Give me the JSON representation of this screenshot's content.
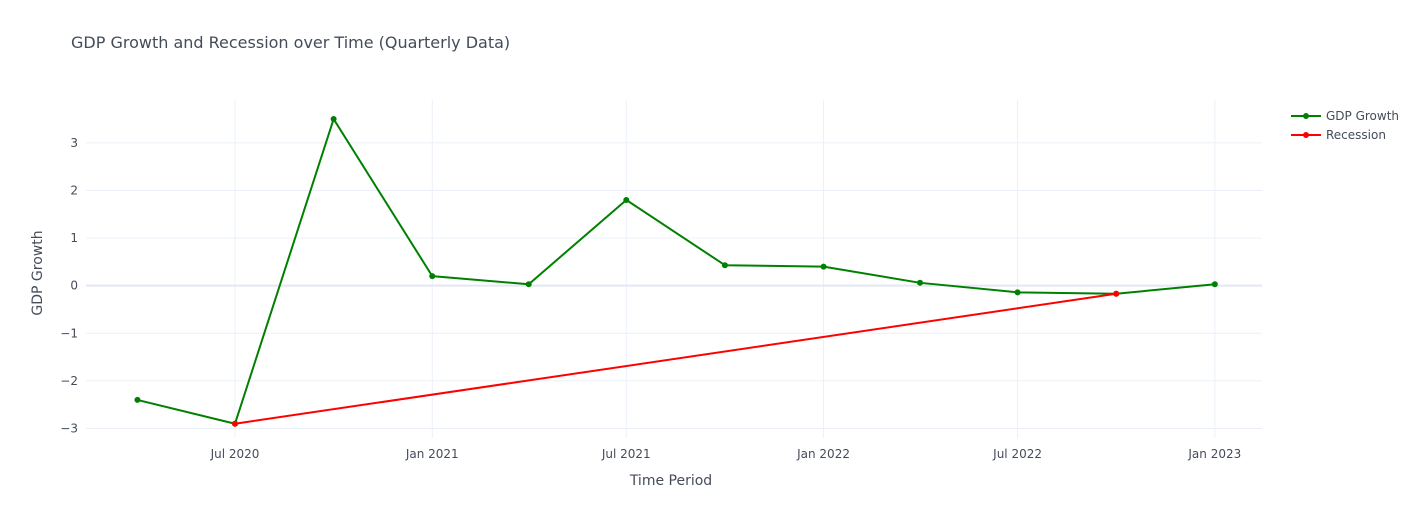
{
  "chart_data": {
    "type": "line",
    "title": "GDP Growth and Recession over Time (Quarterly Data)",
    "xlabel": "Time Period",
    "ylabel": "GDP Growth",
    "x_ticks": [
      "2020-07-01",
      "2021-01-01",
      "2021-07-01",
      "2022-01-01",
      "2022-07-01",
      "2023-01-01"
    ],
    "x_tick_labels": [
      "Jul 2020",
      "Jan 2021",
      "Jul 2021",
      "Jan 2022",
      "Jul 2022",
      "Jan 2023"
    ],
    "xlim": [
      "2020-02-13",
      "2023-02-14"
    ],
    "y_ticks": [
      -3,
      -2,
      -1,
      0,
      1,
      2,
      3
    ],
    "y_tick_labels": [
      "−3",
      "−2",
      "−1",
      "0",
      "1",
      "2",
      "3"
    ],
    "ylim": [
      -3.2,
      3.9
    ],
    "grid": true,
    "legend_position": "top-right",
    "series": [
      {
        "name": "GDP Growth",
        "color": "#008000",
        "x": [
          "2020-04-01",
          "2020-07-01",
          "2020-10-01",
          "2021-01-01",
          "2021-04-01",
          "2021-07-01",
          "2021-10-01",
          "2022-01-01",
          "2022-04-01",
          "2022-07-01",
          "2022-10-01",
          "2023-01-01"
        ],
        "values": [
          -2.4,
          -2.9,
          3.5,
          0.2,
          0.03,
          1.8,
          0.43,
          0.4,
          0.06,
          -0.14,
          -0.17,
          0.03
        ]
      },
      {
        "name": "Recession",
        "color": "#ff0000",
        "x": [
          "2020-07-01",
          "2022-10-01"
        ],
        "values": [
          -2.9,
          -0.17
        ]
      }
    ]
  }
}
